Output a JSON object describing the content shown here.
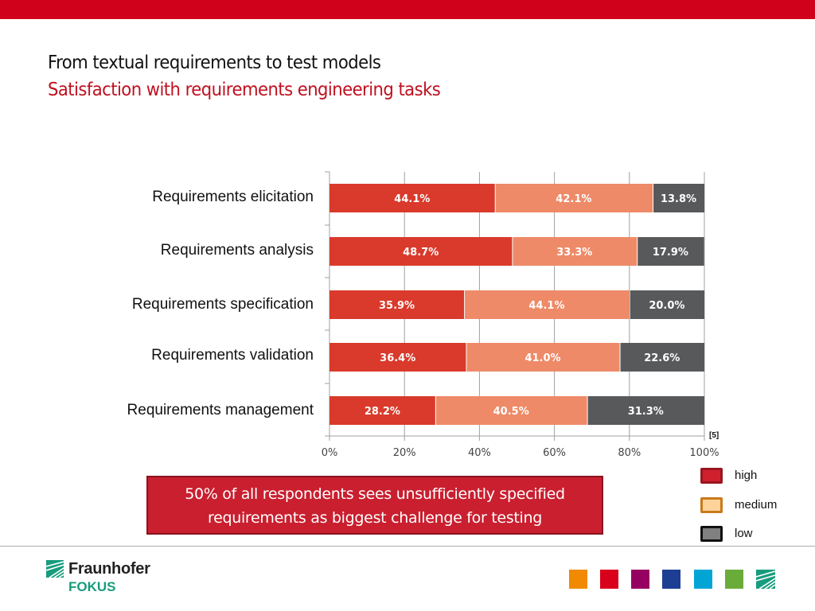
{
  "header": {
    "title": "From textual requirements to test models",
    "subtitle": "Satisfaction with requirements engineering tasks"
  },
  "chart_data": {
    "type": "bar",
    "orientation": "horizontal",
    "stacked": true,
    "categories": [
      "Requirements elicitation",
      "Requirements analysis",
      "Requirements specification",
      "Requirements validation",
      "Requirements management"
    ],
    "series": [
      {
        "name": "high",
        "color": "#d93a2b",
        "values": [
          44.1,
          48.7,
          35.9,
          36.4,
          28.2
        ]
      },
      {
        "name": "medium",
        "color": "#ee8a68",
        "values": [
          42.1,
          33.3,
          44.1,
          41.0,
          40.5
        ]
      },
      {
        "name": "low",
        "color": "#58595b",
        "values": [
          13.8,
          17.9,
          20.0,
          22.6,
          31.3
        ]
      }
    ],
    "data_labels": [
      [
        "44.1%",
        "42.1%",
        "13.8%"
      ],
      [
        "48.7%",
        "33.3%",
        "17.9%"
      ],
      [
        "35.9%",
        "44.1%",
        "20.0%"
      ],
      [
        "36.4%",
        "41.0%",
        "22.6%"
      ],
      [
        "28.2%",
        "40.5%",
        "31.3%"
      ]
    ],
    "x_ticks": [
      "0%",
      "20%",
      "40%",
      "60%",
      "80%",
      "100%"
    ],
    "xlim": [
      0,
      100
    ],
    "grid": true,
    "title": "",
    "xlabel": "",
    "ylabel": "",
    "legend_position": "bottom-right",
    "reference": "[5]"
  },
  "legend": [
    {
      "label": "high",
      "fill": "#d0202e",
      "border": "#9a1520"
    },
    {
      "label": "medium",
      "fill": "#fdd29b",
      "border": "#c87a1a"
    },
    {
      "label": "low",
      "fill": "#808080",
      "border": "#111111"
    }
  ],
  "callout": {
    "line1": "50% of all respondents sees unsufficiently specified",
    "line2": "requirements as biggest challenge for testing"
  },
  "footer": {
    "logo_name": "Fraunhofer",
    "logo_sub": "FOKUS",
    "color_squares": [
      "#f18a00",
      "#d9001b",
      "#960060",
      "#1c3f94",
      "#00a5d6",
      "#6aac3a"
    ]
  }
}
